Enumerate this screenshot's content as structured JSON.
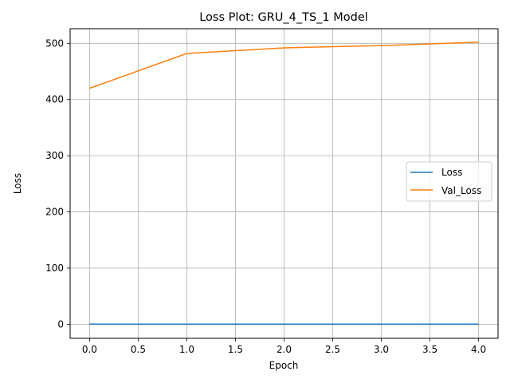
{
  "chart_data": {
    "type": "line",
    "title": "Loss Plot: GRU_4_TS_1 Model",
    "xlabel": "Epoch",
    "ylabel": "Loss",
    "x": [
      0,
      1,
      2,
      3,
      4
    ],
    "xlim": [
      -0.2,
      4.2
    ],
    "ylim": [
      -25,
      526
    ],
    "xticks": [
      "0.0",
      "0.5",
      "1.0",
      "1.5",
      "2.0",
      "2.5",
      "3.0",
      "3.5",
      "4.0"
    ],
    "yticks": [
      "0",
      "100",
      "200",
      "300",
      "400",
      "500"
    ],
    "grid": true,
    "legend_position": "center-right",
    "series": [
      {
        "name": "Loss",
        "color": "#1f77b4",
        "values": [
          0.3,
          0.2,
          0.2,
          0.2,
          0.2
        ]
      },
      {
        "name": "Val_Loss",
        "color": "#ff7f0e",
        "values": [
          420,
          482,
          492,
          496,
          502
        ]
      }
    ]
  }
}
